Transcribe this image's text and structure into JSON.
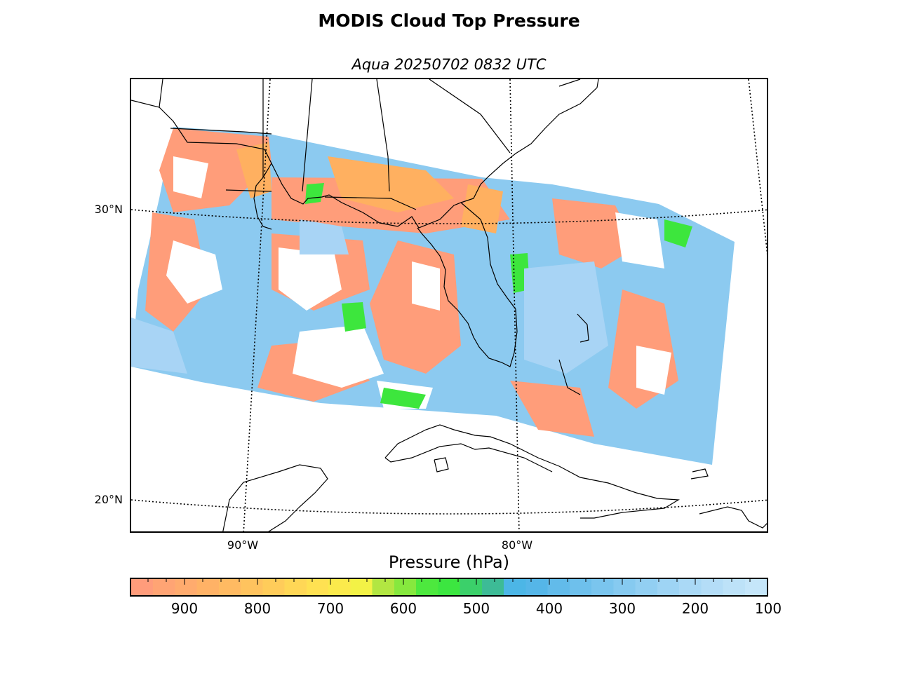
{
  "title": "MODIS Cloud Top Pressure",
  "subtitle": "Aqua 20250702 0832 UTC",
  "map": {
    "latitude_labels": [
      {
        "text": "30°N",
        "lat": 30
      },
      {
        "text": "20°N",
        "lat": 20
      }
    ],
    "longitude_labels": [
      {
        "text": "90°W",
        "lon": -90
      },
      {
        "text": "80°W",
        "lon": -80
      }
    ],
    "gridlines": "dotted",
    "colors": {
      "low_cloud": "#ff9d7a",
      "mid_low": "#ffb060",
      "mid": "#f5f046",
      "mid_high": "#3de63d",
      "high": "#4bb4e6",
      "very_high": "#a8d4f5",
      "coastline": "#000000"
    }
  },
  "colorbar": {
    "label": "Pressure (hPa)",
    "min": 100,
    "max": 975,
    "ticks": [
      {
        "text": "900",
        "value": 900
      },
      {
        "text": "800",
        "value": 800
      },
      {
        "text": "700",
        "value": 700
      },
      {
        "text": "600",
        "value": 600
      },
      {
        "text": "500",
        "value": 500
      },
      {
        "text": "400",
        "value": 400
      },
      {
        "text": "300",
        "value": 300
      },
      {
        "text": "200",
        "value": 200
      },
      {
        "text": "100",
        "value": 100
      }
    ],
    "segments": [
      "#ff9c7b",
      "#ffa474",
      "#ffab6e",
      "#ffb266",
      "#ffba62",
      "#ffc35e",
      "#ffcc5a",
      "#ffd756",
      "#ffe152",
      "#fbea4c",
      "#f3f246",
      "#b2e642",
      "#86e83e",
      "#4de83e",
      "#3ce640",
      "#3bd06a",
      "#3dbb96",
      "#4cb6e6",
      "#55b6e8",
      "#62bbea",
      "#6ec0ec",
      "#7ac5ee",
      "#86caf0",
      "#92cff2",
      "#9ed4f4",
      "#aad9f6",
      "#b4ddf7",
      "#bde2f8",
      "#c5e6fa"
    ]
  }
}
